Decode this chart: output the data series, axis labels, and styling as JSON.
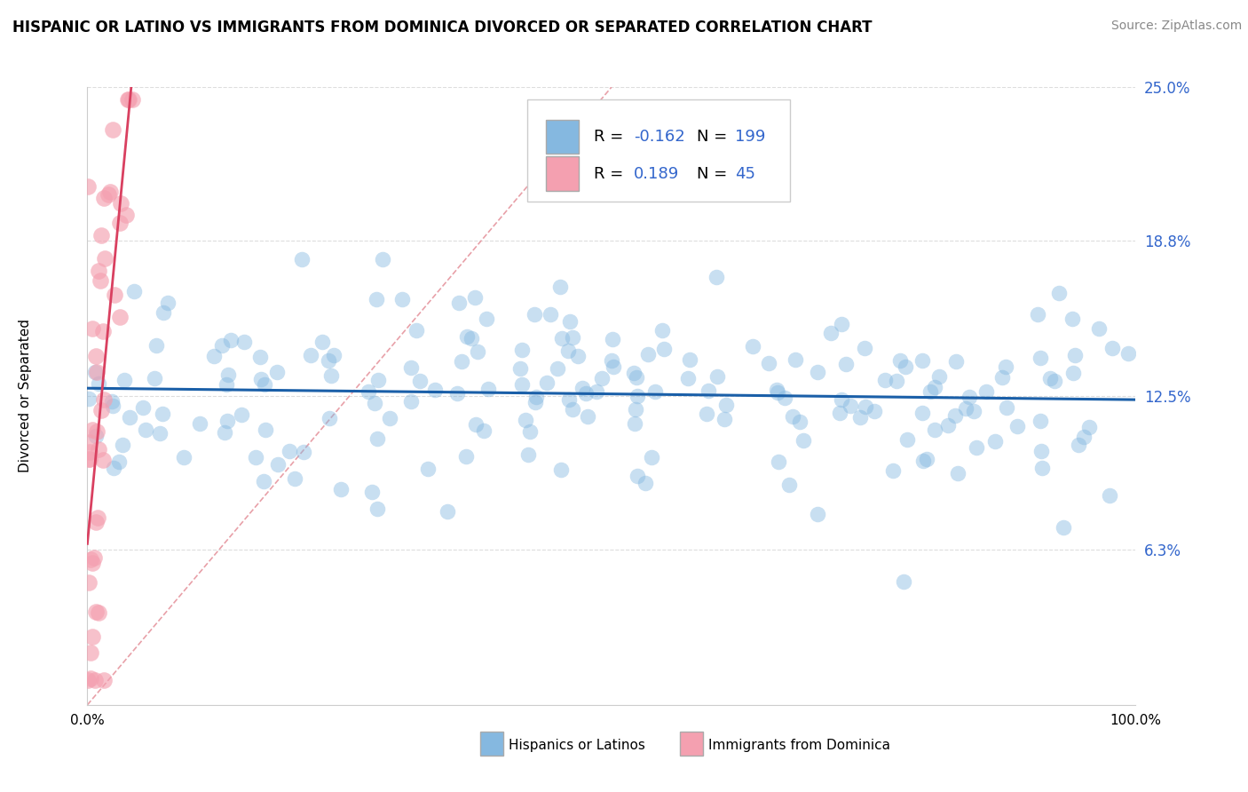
{
  "title": "HISPANIC OR LATINO VS IMMIGRANTS FROM DOMINICA DIVORCED OR SEPARATED CORRELATION CHART",
  "source": "Source: ZipAtlas.com",
  "ylabel": "Divorced or Separated",
  "yticks": [
    0.0,
    0.063,
    0.125,
    0.188,
    0.25
  ],
  "ytick_labels": [
    "",
    "6.3%",
    "12.5%",
    "18.8%",
    "25.0%"
  ],
  "xlim": [
    0.0,
    1.0
  ],
  "ylim": [
    0.0,
    0.25
  ],
  "legend_R1": "-0.162",
  "legend_N1": "199",
  "legend_R2": "0.189",
  "legend_N2": "45",
  "legend_label1": "Hispanics or Latinos",
  "legend_label2": "Immigrants from Dominica",
  "blue_color": "#85b8e0",
  "pink_color": "#f4a0b0",
  "trend_blue": "#1a5fa8",
  "trend_pink": "#d94060",
  "diag_color": "#e8a0a8",
  "title_fontsize": 12,
  "source_fontsize": 10,
  "blue_R": -0.162,
  "pink_R": 0.189,
  "blue_N": 199,
  "pink_N": 45
}
